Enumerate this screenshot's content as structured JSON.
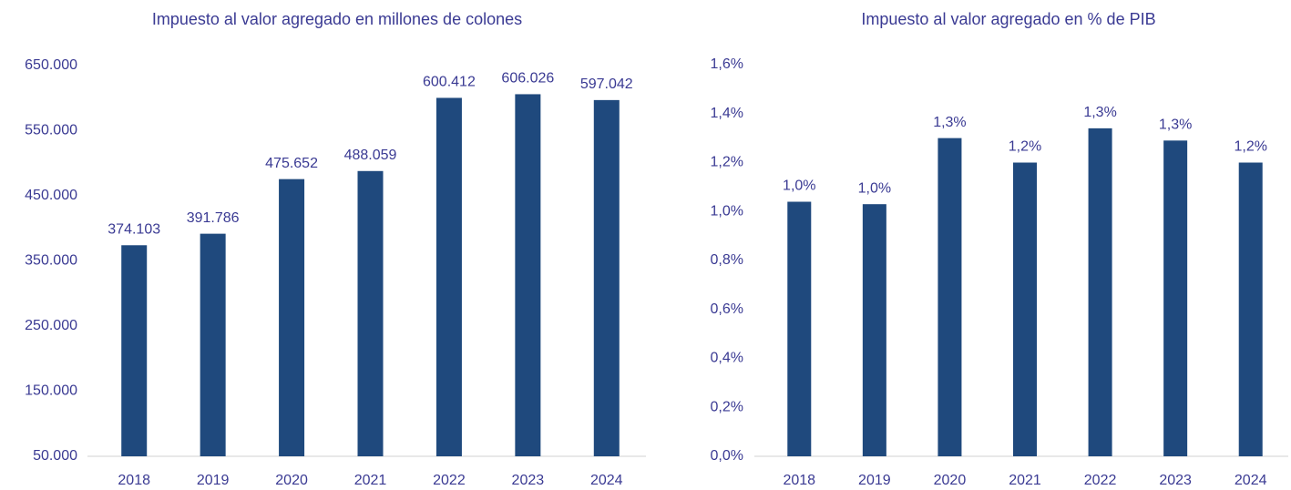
{
  "chart_data": [
    {
      "type": "bar",
      "title": "Impuesto al valor agregado en millones de colones",
      "categories": [
        "2018",
        "2019",
        "2020",
        "2021",
        "2022",
        "2023",
        "2024"
      ],
      "values": [
        374103,
        391786,
        475652,
        488059,
        600412,
        606026,
        597042
      ],
      "value_labels": [
        "374.103",
        "391.786",
        "475.652",
        "488.059",
        "600.412",
        "606.026",
        "597.042"
      ],
      "color": "#1f497d",
      "ylim": [
        50000,
        650000
      ],
      "yticks": [
        {
          "value": 50000,
          "label": "50.000"
        },
        {
          "value": 150000,
          "label": "150.000"
        },
        {
          "value": 250000,
          "label": "250.000"
        },
        {
          "value": 350000,
          "label": "350.000"
        },
        {
          "value": 450000,
          "label": "450.000"
        },
        {
          "value": 550000,
          "label": "550.000"
        },
        {
          "value": 650000,
          "label": "650.000"
        }
      ],
      "grid": false
    },
    {
      "type": "bar",
      "title": "Impuesto al valor agregado en % de PIB",
      "categories": [
        "2018",
        "2019",
        "2020",
        "2021",
        "2022",
        "2023",
        "2024"
      ],
      "values": [
        1.04,
        1.03,
        1.3,
        1.2,
        1.34,
        1.29,
        1.2
      ],
      "value_labels": [
        "1,0%",
        "1,0%",
        "1,3%",
        "1,2%",
        "1,3%",
        "1,3%",
        "1,2%"
      ],
      "color": "#1f497d",
      "ylim": [
        0,
        1.6
      ],
      "yticks": [
        {
          "value": 0,
          "label": "0,0%"
        },
        {
          "value": 0.2,
          "label": "0,2%"
        },
        {
          "value": 0.4,
          "label": "0,4%"
        },
        {
          "value": 0.6,
          "label": "0,6%"
        },
        {
          "value": 0.8,
          "label": "0,8%"
        },
        {
          "value": 1.0,
          "label": "1,0%"
        },
        {
          "value": 1.2,
          "label": "1,2%"
        },
        {
          "value": 1.4,
          "label": "1,4%"
        },
        {
          "value": 1.6,
          "label": "1,6%"
        }
      ],
      "grid": false
    }
  ]
}
